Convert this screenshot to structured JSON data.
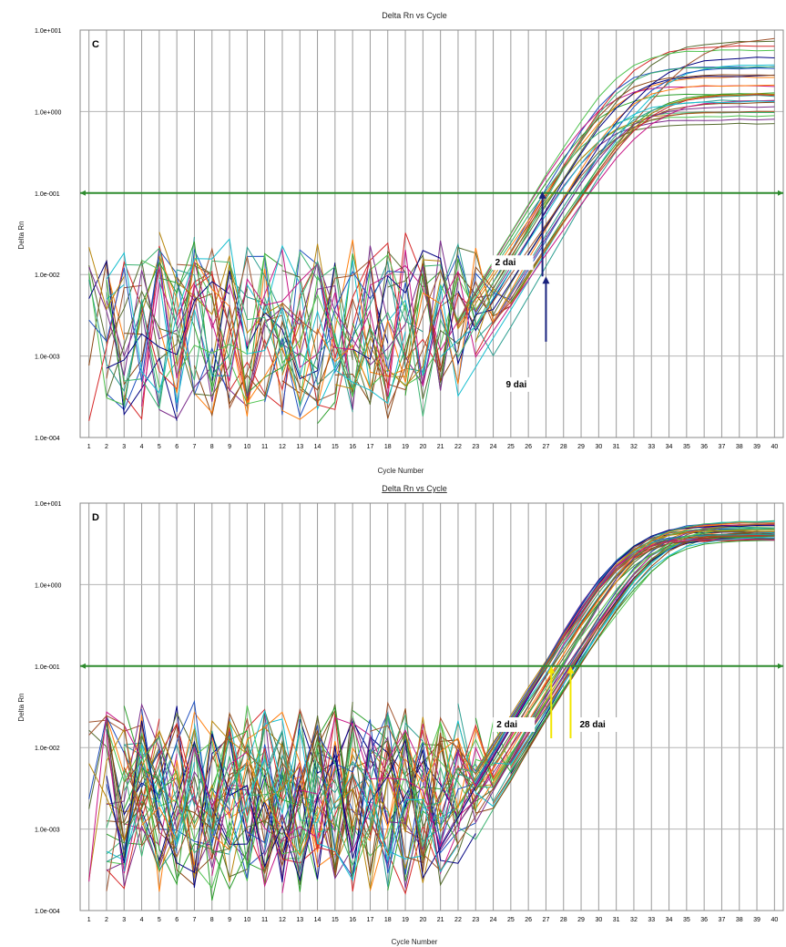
{
  "colors": {
    "threshold": "#2e8b2e",
    "grid": "#aaaaaa",
    "arrow_c": "#1a237e",
    "arrow_d": "#f2e600",
    "curves": [
      "#d62728",
      "#2ca02c",
      "#1f4fbf",
      "#8b4513",
      "#7b2d8b",
      "#2a9d8f",
      "#ff7f0e",
      "#556b2f",
      "#4fc34f",
      "#b8860b",
      "#000080",
      "#c71585",
      "#3cb371",
      "#a0522d",
      "#17becf"
    ]
  },
  "chart_data": [
    {
      "type": "line",
      "panel_letter": "C",
      "title": "Delta Rn vs Cycle",
      "xlabel": "Cycle Number",
      "ylabel": "Delta Rn",
      "y_scale": "log",
      "ylim": [
        0.0001,
        10
      ],
      "xlim": [
        0.5,
        40.5
      ],
      "x": [
        1,
        2,
        3,
        4,
        5,
        6,
        7,
        8,
        9,
        10,
        11,
        12,
        13,
        14,
        15,
        16,
        17,
        18,
        19,
        20,
        21,
        22,
        23,
        24,
        25,
        26,
        27,
        28,
        29,
        30,
        31,
        32,
        33,
        34,
        35,
        36,
        37,
        38,
        39,
        40
      ],
      "ytick_labels": [
        "1.0e+001",
        "1.0e+000",
        "1.0e-001",
        "1.0e-002",
        "1.0e-003",
        "1.0e-004"
      ],
      "grid": true,
      "threshold": 0.1,
      "series_summary": {
        "count": 30,
        "baseline_range": [
          0.0002,
          0.025
        ],
        "ct_range": [
          26.3,
          29.5
        ],
        "plateau_range": [
          0.6,
          8.0
        ],
        "early_curve_ct": 26.8,
        "late_curve_ct": 27.0
      },
      "annotations": [
        {
          "text": "2 dai",
          "x": 26.8,
          "y_from": 0.0095,
          "y_to": 0.105,
          "direction": "up"
        },
        {
          "text": "9 dai",
          "x": 27.0,
          "y_from": 0.0015,
          "y_to": 0.0095,
          "direction": "up"
        }
      ]
    },
    {
      "type": "line",
      "panel_letter": "D",
      "title": "Delta Rn vs Cycle",
      "xlabel": "Cycle Number",
      "ylabel": "Delta Rn",
      "y_scale": "log",
      "ylim": [
        0.0001,
        10
      ],
      "xlim": [
        0.5,
        40.5
      ],
      "x": [
        1,
        2,
        3,
        4,
        5,
        6,
        7,
        8,
        9,
        10,
        11,
        12,
        13,
        14,
        15,
        16,
        17,
        18,
        19,
        20,
        21,
        22,
        23,
        24,
        25,
        26,
        27,
        28,
        29,
        30,
        31,
        32,
        33,
        34,
        35,
        36,
        37,
        38,
        39,
        40
      ],
      "ytick_labels": [
        "1.0e+001",
        "1.0e+000",
        "1.0e-001",
        "1.0e-002",
        "1.0e-003",
        "1.0e-004"
      ],
      "grid": true,
      "threshold": 0.1,
      "series_summary": {
        "count": 45,
        "baseline_range": [
          0.0002,
          0.03
        ],
        "ct_range": [
          26.8,
          29.0
        ],
        "plateau_range": [
          3.5,
          6.0
        ],
        "early_curve_ct": 27.3,
        "late_curve_ct": 28.4
      },
      "annotations": [
        {
          "text": "2 dai",
          "x": 27.3,
          "y_from": 0.013,
          "y_to": 0.1,
          "direction": "up"
        },
        {
          "text": "28 dai",
          "x": 28.4,
          "y_from": 0.013,
          "y_to": 0.1,
          "direction": "up"
        }
      ]
    }
  ]
}
